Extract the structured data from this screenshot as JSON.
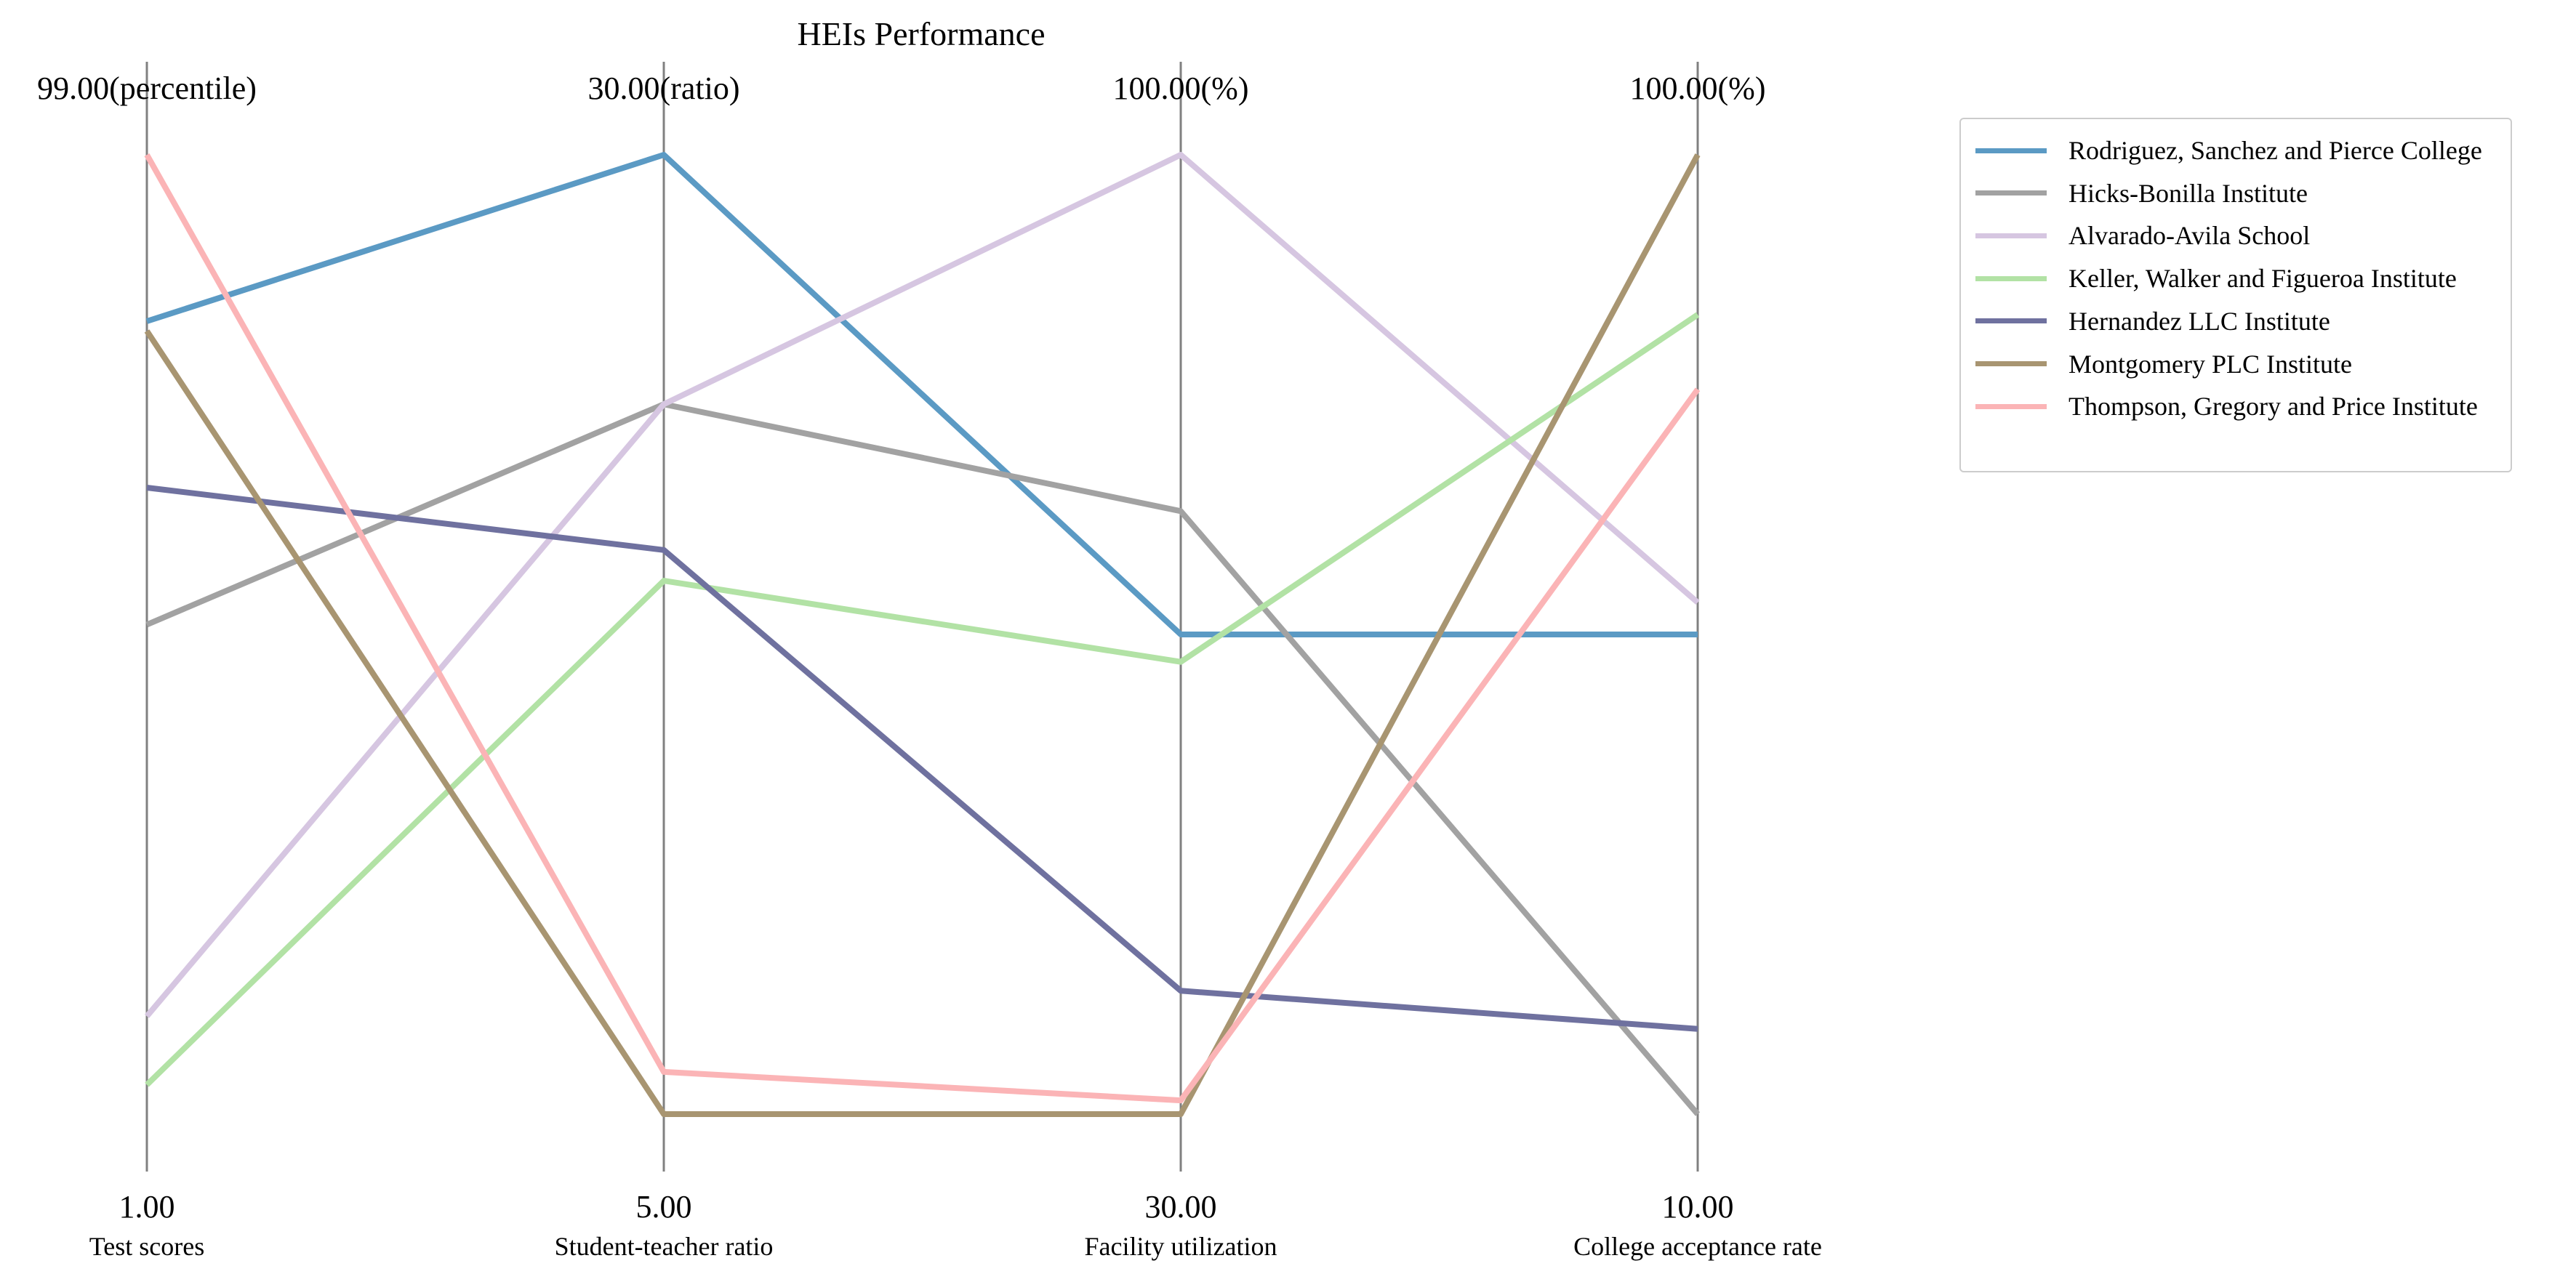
{
  "chart_data": {
    "type": "parallel_coordinates",
    "title": "HEIs Performance",
    "axes": [
      {
        "label": "Test scores",
        "min": 1.0,
        "max": 99.0,
        "min_label": "1.00",
        "max_label": "99.00(percentile)"
      },
      {
        "label": "Student-teacher ratio",
        "min": 5.0,
        "max": 30.0,
        "min_label": "5.00",
        "max_label": "30.00(ratio)"
      },
      {
        "label": "Facility utilization",
        "min": 30.0,
        "max": 100.0,
        "min_label": "30.00",
        "max_label": "100.00(%)"
      },
      {
        "label": "College acceptance rate",
        "min": 10.0,
        "max": 100.0,
        "min_label": "10.00",
        "max_label": "100.00(%)"
      }
    ],
    "series": [
      {
        "name": "Rodriguez, Sanchez and Pierce  College",
        "color": "#5b9ac4",
        "values": [
          82,
          30.0,
          65,
          55
        ]
      },
      {
        "name": "Hicks-Bonilla  Institute",
        "color": "#a2a2a2",
        "values": [
          51,
          23.5,
          74,
          10
        ]
      },
      {
        "name": "Alvarado-Avila  School",
        "color": "#d6c6e1",
        "values": [
          11,
          23.5,
          100,
          58
        ]
      },
      {
        "name": "Keller, Walker and Figueroa  Institute",
        "color": "#b2e2a5",
        "values": [
          4,
          18.9,
          63,
          85
        ]
      },
      {
        "name": "Hernandez LLC  Institute",
        "color": "#6f719f",
        "values": [
          65,
          19.7,
          39,
          18
        ]
      },
      {
        "name": "Montgomery PLC  Institute",
        "color": "#a89571",
        "values": [
          81,
          5.0,
          30,
          100
        ]
      },
      {
        "name": "Thompson, Gregory and Price  Institute",
        "color": "#fbb4b6",
        "values": [
          99,
          6.1,
          31,
          78
        ]
      }
    ],
    "legend_position": "upper-right-outside",
    "grid": false
  }
}
